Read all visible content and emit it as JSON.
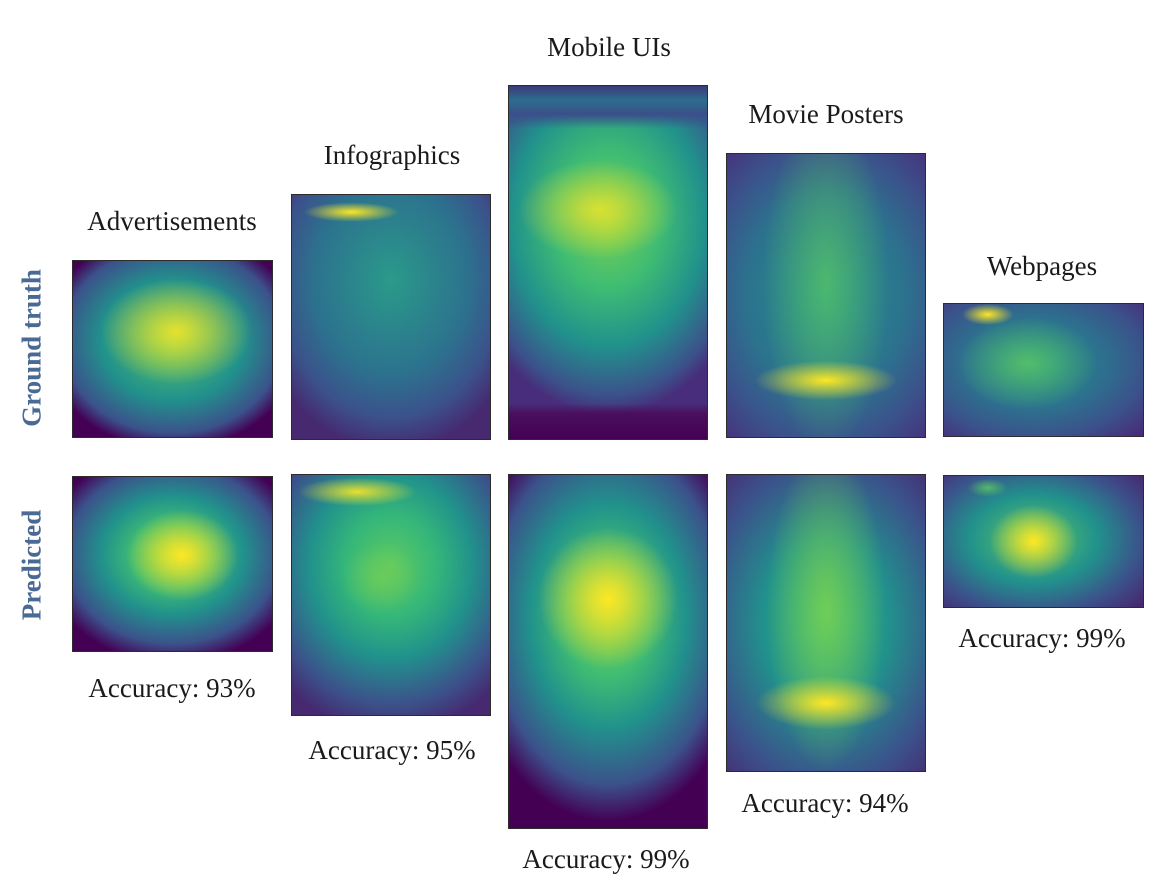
{
  "row_labels": {
    "top": "Ground truth",
    "bottom": "Predicted"
  },
  "colormap": [
    "#440154",
    "#3b528b",
    "#21918c",
    "#5ec962",
    "#fde725"
  ],
  "categories": [
    {
      "title": "Advertisements",
      "accuracy": "Accuracy: 93%"
    },
    {
      "title": "Infographics",
      "accuracy": "Accuracy: 95%"
    },
    {
      "title": "Mobile UIs",
      "accuracy": "Accuracy: 99%"
    },
    {
      "title": "Movie Posters",
      "accuracy": "Accuracy: 94%"
    },
    {
      "title": "Webpages",
      "accuracy": "Accuracy: 99%"
    }
  ]
}
